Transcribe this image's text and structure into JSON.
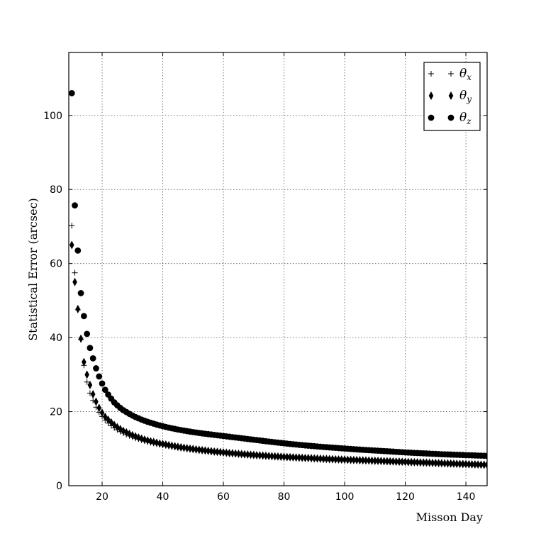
{
  "chart_data": {
    "type": "scatter",
    "title": "",
    "xlabel": "Misson Day",
    "ylabel": "Statistical Error (arcsec)",
    "xlim": [
      9,
      147
    ],
    "ylim": [
      0,
      117
    ],
    "xticks": [
      20,
      40,
      60,
      80,
      100,
      120,
      140
    ],
    "yticks": [
      0,
      20,
      40,
      60,
      80,
      100
    ],
    "grid": true,
    "legend_position": "top-right",
    "series": [
      {
        "name": "θx",
        "legend_base": "θ",
        "legend_sub": "x",
        "marker": "plus",
        "color": "#000000",
        "x_start": 10,
        "x_end": 147,
        "x_step": 1,
        "values": [
          70.2,
          57.5,
          47.5,
          39.5,
          32.5,
          28.0,
          25.0,
          23.0,
          21.2,
          19.8,
          18.7,
          17.7,
          16.9,
          16.2,
          15.6,
          15.1,
          14.6,
          14.2,
          13.8,
          13.45,
          13.1,
          12.8,
          12.55,
          12.3,
          12.05,
          11.85,
          11.65,
          11.45,
          11.25,
          11.1,
          10.95,
          10.8,
          10.65,
          10.5,
          10.35,
          10.22,
          10.1,
          9.98,
          9.86,
          9.75,
          9.64,
          9.54,
          9.44,
          9.35,
          9.26,
          9.17,
          9.08,
          9.0,
          8.92,
          8.84,
          8.76,
          8.69,
          8.62,
          8.55,
          8.48,
          8.41,
          8.35,
          8.29,
          8.23,
          8.17,
          8.11,
          8.05,
          8.0,
          7.95,
          7.9,
          7.85,
          7.8,
          7.75,
          7.7,
          7.65,
          7.6,
          7.56,
          7.52,
          7.48,
          7.44,
          7.4,
          7.36,
          7.32,
          7.28,
          7.24,
          7.2,
          7.16,
          7.12,
          7.08,
          7.04,
          7.0,
          6.97,
          6.94,
          6.91,
          6.88,
          6.85,
          6.82,
          6.79,
          6.76,
          6.73,
          6.7,
          6.67,
          6.64,
          6.61,
          6.58,
          6.55,
          6.52,
          6.49,
          6.46,
          6.43,
          6.4,
          6.37,
          6.34,
          6.31,
          6.28,
          6.25,
          6.22,
          6.19,
          6.16,
          6.13,
          6.1,
          6.07,
          6.04,
          6.01,
          5.98,
          5.95,
          5.92,
          5.89,
          5.86,
          5.83,
          5.8,
          5.78,
          5.76,
          5.74,
          5.72,
          5.7,
          5.68,
          5.66,
          5.64,
          5.62,
          5.6,
          5.58,
          5.56
        ]
      },
      {
        "name": "θy",
        "legend_base": "θ",
        "legend_sub": "y",
        "marker": "diamond",
        "color": "#000000",
        "x_start": 10,
        "x_end": 147,
        "x_step": 1,
        "values": [
          65.0,
          55.0,
          47.7,
          39.7,
          33.4,
          30.0,
          27.2,
          24.7,
          22.7,
          21.0,
          19.7,
          18.6,
          17.8,
          17.1,
          16.4,
          15.8,
          15.3,
          14.8,
          14.4,
          14.0,
          13.65,
          13.3,
          13.0,
          12.7,
          12.45,
          12.2,
          12.0,
          11.8,
          11.6,
          11.4,
          11.25,
          11.1,
          10.95,
          10.8,
          10.65,
          10.5,
          10.37,
          10.25,
          10.13,
          10.01,
          9.9,
          9.8,
          9.7,
          9.6,
          9.5,
          9.4,
          9.31,
          9.22,
          9.14,
          9.06,
          8.98,
          8.9,
          8.82,
          8.75,
          8.68,
          8.61,
          8.54,
          8.48,
          8.42,
          8.36,
          8.3,
          8.24,
          8.18,
          8.13,
          8.08,
          8.03,
          7.98,
          7.93,
          7.88,
          7.83,
          7.78,
          7.74,
          7.7,
          7.66,
          7.62,
          7.58,
          7.54,
          7.5,
          7.46,
          7.42,
          7.38,
          7.34,
          7.3,
          7.26,
          7.22,
          7.18,
          7.15,
          7.12,
          7.09,
          7.06,
          7.03,
          7.0,
          6.97,
          6.94,
          6.91,
          6.88,
          6.85,
          6.82,
          6.79,
          6.76,
          6.73,
          6.7,
          6.67,
          6.64,
          6.61,
          6.58,
          6.55,
          6.52,
          6.49,
          6.46,
          6.43,
          6.4,
          6.37,
          6.34,
          6.31,
          6.28,
          6.25,
          6.22,
          6.19,
          6.16,
          6.13,
          6.1,
          6.07,
          6.04,
          6.01,
          5.98,
          5.95,
          5.92,
          5.89,
          5.86,
          5.83,
          5.8,
          5.77,
          5.74,
          5.71,
          5.68,
          5.65,
          5.62
        ]
      },
      {
        "name": "θz",
        "legend_base": "θ",
        "legend_sub": "z",
        "marker": "circle",
        "color": "#000000",
        "x_start": 10,
        "x_end": 147,
        "x_step": 1,
        "values": [
          106.0,
          75.7,
          63.5,
          52.0,
          45.8,
          41.0,
          37.2,
          34.4,
          31.7,
          29.5,
          27.6,
          25.9,
          24.6,
          23.5,
          22.5,
          21.7,
          21.0,
          20.4,
          19.9,
          19.4,
          18.95,
          18.55,
          18.2,
          17.85,
          17.55,
          17.25,
          17.0,
          16.75,
          16.5,
          16.28,
          16.07,
          15.87,
          15.68,
          15.5,
          15.33,
          15.17,
          15.02,
          14.88,
          14.74,
          14.61,
          14.48,
          14.36,
          14.24,
          14.13,
          14.02,
          13.92,
          13.82,
          13.72,
          13.62,
          13.52,
          13.42,
          13.32,
          13.22,
          13.12,
          13.02,
          12.92,
          12.82,
          12.72,
          12.62,
          12.52,
          12.42,
          12.32,
          12.22,
          12.12,
          12.02,
          11.92,
          11.82,
          11.73,
          11.64,
          11.55,
          11.46,
          11.37,
          11.28,
          11.2,
          11.12,
          11.04,
          10.96,
          10.88,
          10.81,
          10.74,
          10.67,
          10.6,
          10.53,
          10.46,
          10.4,
          10.34,
          10.28,
          10.22,
          10.16,
          10.1,
          10.04,
          9.98,
          9.92,
          9.86,
          9.8,
          9.75,
          9.7,
          9.65,
          9.6,
          9.55,
          9.5,
          9.45,
          9.4,
          9.35,
          9.3,
          9.25,
          9.2,
          9.15,
          9.1,
          9.05,
          9.0,
          8.95,
          8.9,
          8.86,
          8.82,
          8.78,
          8.74,
          8.7,
          8.66,
          8.62,
          8.58,
          8.54,
          8.5,
          8.47,
          8.44,
          8.41,
          8.38,
          8.35,
          8.32,
          8.29,
          8.26,
          8.23,
          8.2,
          8.17,
          8.14,
          8.11,
          8.08,
          8.05
        ]
      }
    ]
  }
}
